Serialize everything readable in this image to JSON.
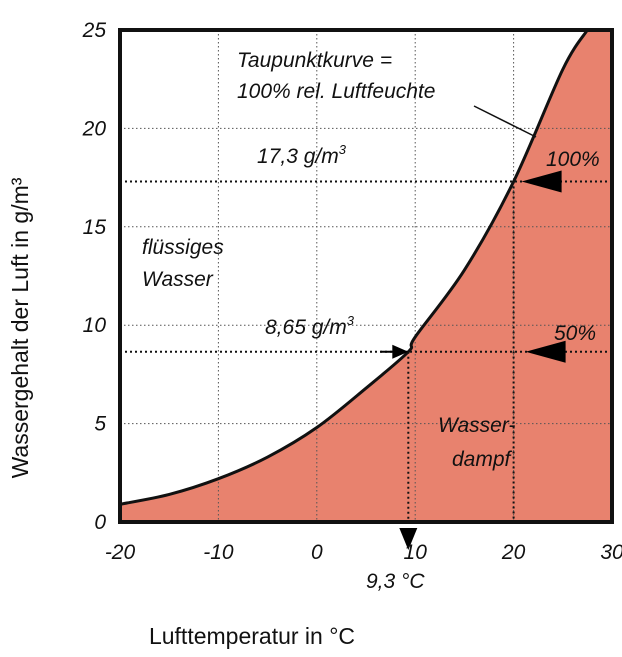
{
  "chart_data": {
    "type": "area",
    "xlabel": "Lufttemperatur in °C",
    "ylabel": "Wassergehalt der Luft in g/m³",
    "xlim": [
      -20,
      30
    ],
    "ylim": [
      0,
      25
    ],
    "x_ticks": [
      "-20",
      "-10",
      "0",
      "10",
      "20",
      "30"
    ],
    "y_ticks": [
      "0",
      "5",
      "10",
      "15",
      "20",
      "25"
    ],
    "grid": true,
    "series": [
      {
        "x": [
          -20,
          -15,
          -10,
          -5,
          0,
          5,
          9.3,
          10,
          15,
          20,
          25,
          27.5
        ],
        "y": [
          0.9,
          1.4,
          2.2,
          3.3,
          4.8,
          6.8,
          8.65,
          9.4,
          12.8,
          17.3,
          23.0,
          25.0
        ]
      }
    ],
    "fill_color": "#e8826e",
    "annotations": {
      "curve_label_line1": "Taupunktkurve =",
      "curve_label_line2": "100% rel. Luftfeuchte",
      "value_173": "17,3 g/m",
      "value_865": "8,65 g/m",
      "superscript": "3",
      "pct_100": "100%",
      "pct_50": "50%",
      "liquid_line1": "flüssiges",
      "liquid_line2": "Wasser",
      "vapor_line1": "Wasser-",
      "vapor_line2": "dampf",
      "dewpoint_temp": "9,3 °C"
    },
    "markers": {
      "point_100_x": 20,
      "point_100_y": 17.3,
      "point_50_x": 20,
      "point_50_y": 8.65,
      "dewpoint_x": 9.3
    }
  }
}
